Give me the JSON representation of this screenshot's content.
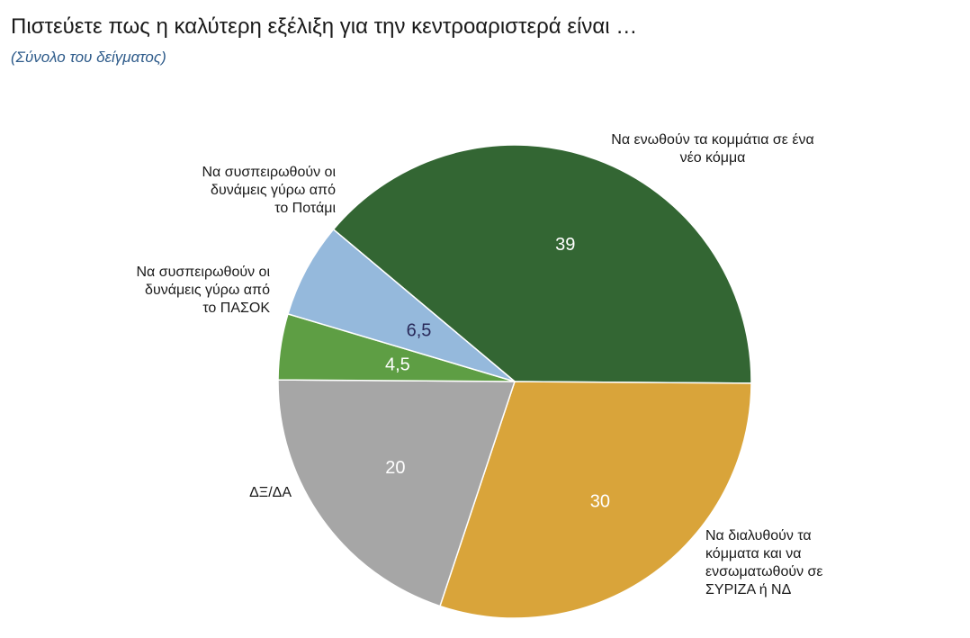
{
  "chart_data": {
    "type": "pie",
    "title": "Πιστεύετε πως η καλύτερη εξέλιξη για την κεντροαριστερά είναι …",
    "subtitle": "(Σύνολο του δείγματος)",
    "slices": [
      {
        "label": [
          "Να ενωθούν τα κομμάτια σε ένα",
          "νέο κόμμα"
        ],
        "value": 39,
        "display": "39",
        "color": "#336633",
        "text_color": "#ffffff"
      },
      {
        "label": [
          "Να διαλυθούν τα",
          "κόμματα και να",
          "ενσωματωθούν σε",
          "ΣΥΡΙΖΑ ή ΝΔ"
        ],
        "value": 30,
        "display": "30",
        "color": "#d9a43a",
        "text_color": "#ffffff"
      },
      {
        "label": [
          "ΔΞ/ΔΑ"
        ],
        "value": 20,
        "display": "20",
        "color": "#a6a6a6",
        "text_color": "#ffffff"
      },
      {
        "label": [
          "Να συσπειρωθούν οι",
          "δυνάμεις γύρω από",
          "το ΠΑΣΟΚ"
        ],
        "value": 4.5,
        "display": "4,5",
        "color": "#5e9e44",
        "text_color": "#ffffff"
      },
      {
        "label": [
          "Να συσπειρωθούν οι",
          "δυνάμεις γύρω από",
          "το Ποτάμι"
        ],
        "value": 6.5,
        "display": "6,5",
        "color": "#95b9dc",
        "text_color": "#2a2a5a"
      }
    ]
  }
}
